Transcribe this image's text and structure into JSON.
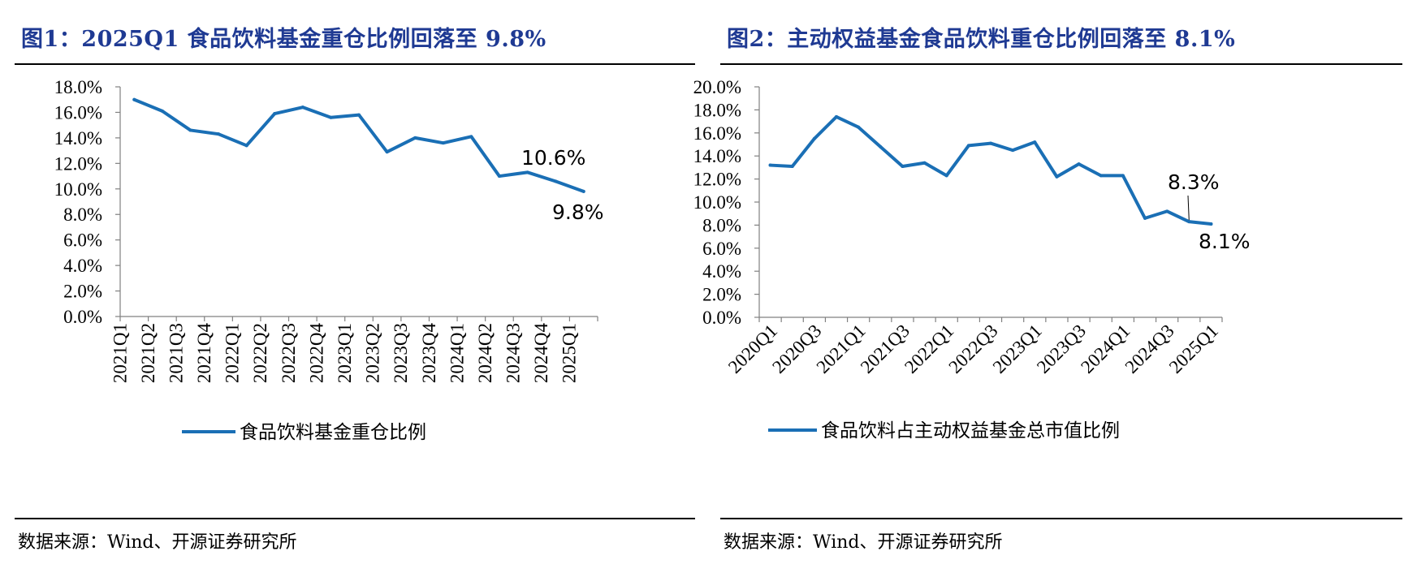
{
  "colors": {
    "title": "#1f3a93",
    "series": "#1a6fb5",
    "axis": "#808080"
  },
  "figures": [
    {
      "title": "图1：2025Q1 食品饮料基金重仓比例回落至 9.8%",
      "source": "数据来源：Wind、开源证券研究所"
    },
    {
      "title": "图2：主动权益基金食品饮料重仓比例回落至 8.1%",
      "source": "数据来源：Wind、开源证券研究所"
    }
  ],
  "chart_data": [
    {
      "type": "line",
      "title": "",
      "xlabel": "",
      "ylabel": "",
      "ylim": [
        0,
        18
      ],
      "ytick_step": 2,
      "ytick_labels": [
        "0.0%",
        "2.0%",
        "4.0%",
        "6.0%",
        "8.0%",
        "10.0%",
        "12.0%",
        "14.0%",
        "16.0%",
        "18.0%"
      ],
      "grid": false,
      "legend": "bottom",
      "x_label_rotation": "vertical",
      "categories": [
        "2021Q1",
        "2021Q2",
        "2021Q3",
        "2021Q4",
        "2022Q1",
        "2022Q2",
        "2022Q3",
        "2022Q4",
        "2023Q1",
        "2023Q2",
        "2023Q3",
        "2023Q4",
        "2024Q1",
        "2024Q2",
        "2024Q3",
        "2024Q4",
        "2025Q1"
      ],
      "category_labels_shown": [
        "2021Q1",
        "2021Q2",
        "2021Q3",
        "2021Q4",
        "2022Q1",
        "2022Q2",
        "2022Q3",
        "2022Q4",
        "2023Q1",
        "2023Q2",
        "2023Q3",
        "2023Q4",
        "2024Q1",
        "2024Q2",
        "2024Q3",
        "2024Q4",
        "2025Q1"
      ],
      "series": [
        {
          "name": "食品饮料基金重仓比例",
          "values": [
            17.0,
            16.1,
            14.6,
            14.3,
            13.4,
            15.9,
            16.4,
            15.6,
            15.8,
            12.9,
            14.0,
            13.6,
            14.1,
            11.0,
            11.3,
            10.6,
            9.8
          ]
        }
      ],
      "annotations": [
        {
          "text": "10.6%",
          "index": 15
        },
        {
          "text": "9.8%",
          "index": 16
        }
      ]
    },
    {
      "type": "line",
      "title": "",
      "xlabel": "",
      "ylabel": "",
      "ylim": [
        0,
        20
      ],
      "ytick_step": 2,
      "ytick_labels": [
        "0.0%",
        "2.0%",
        "4.0%",
        "6.0%",
        "8.0%",
        "10.0%",
        "12.0%",
        "14.0%",
        "16.0%",
        "18.0%",
        "20.0%"
      ],
      "grid": false,
      "legend": "bottom",
      "x_label_rotation": "diagonal",
      "categories": [
        "2020Q1",
        "2020Q2",
        "2020Q3",
        "2020Q4",
        "2021Q1",
        "2021Q2",
        "2021Q3",
        "2021Q4",
        "2022Q1",
        "2022Q2",
        "2022Q3",
        "2022Q4",
        "2023Q1",
        "2023Q2",
        "2023Q3",
        "2023Q4",
        "2024Q1",
        "2024Q2",
        "2024Q3",
        "2024Q4",
        "2025Q1"
      ],
      "category_labels_shown": [
        "2020Q1",
        "",
        "2020Q3",
        "",
        "2021Q1",
        "",
        "2021Q3",
        "",
        "2022Q1",
        "",
        "2022Q3",
        "",
        "2023Q1",
        "",
        "2023Q3",
        "",
        "2024Q1",
        "",
        "2024Q3",
        "",
        "2025Q1"
      ],
      "series": [
        {
          "name": "食品饮料占主动权益基金总市值比例",
          "values": [
            13.2,
            13.1,
            15.5,
            17.4,
            16.5,
            14.8,
            13.1,
            13.4,
            12.3,
            14.9,
            15.1,
            14.5,
            15.2,
            12.2,
            13.3,
            12.3,
            12.3,
            8.6,
            9.2,
            8.3,
            8.1
          ]
        }
      ],
      "annotations": [
        {
          "text": "8.3%",
          "index": 19
        },
        {
          "text": "8.1%",
          "index": 20
        }
      ]
    }
  ]
}
